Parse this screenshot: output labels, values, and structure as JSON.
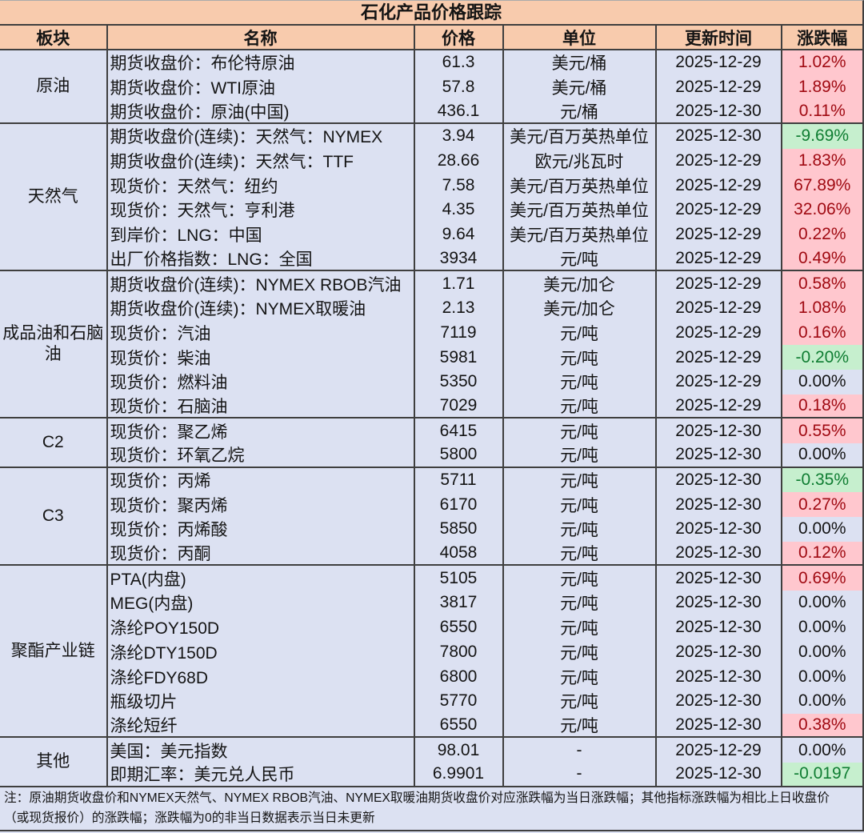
{
  "title": "石化产品价格跟踪",
  "columns": [
    "板块",
    "名称",
    "价格",
    "单位",
    "更新时间",
    "涨跌幅"
  ],
  "groups": [
    {
      "name": "原油",
      "rows": [
        {
          "name": "期货收盘价：布伦特原油",
          "price": "61.3",
          "unit": "美元/桶",
          "date": "2025-12-29",
          "change": "1.02%",
          "state": "up"
        },
        {
          "name": "期货收盘价：WTI原油",
          "price": "57.8",
          "unit": "美元/桶",
          "date": "2025-12-29",
          "change": "1.89%",
          "state": "up"
        },
        {
          "name": "期货收盘价：原油(中国)",
          "price": "436.1",
          "unit": "元/桶",
          "date": "2025-12-30",
          "change": "0.11%",
          "state": "up"
        }
      ]
    },
    {
      "name": "天然气",
      "rows": [
        {
          "name": "期货收盘价(连续)：天然气：NYMEX",
          "price": "3.94",
          "unit": "美元/百万英热单位",
          "date": "2025-12-30",
          "change": "-9.69%",
          "state": "down"
        },
        {
          "name": "期货收盘价(连续)：天然气：TTF",
          "price": "28.66",
          "unit": "欧元/兆瓦时",
          "date": "2025-12-29",
          "change": "1.83%",
          "state": "up"
        },
        {
          "name": "现货价：天然气：纽约",
          "price": "7.58",
          "unit": "美元/百万英热单位",
          "date": "2025-12-29",
          "change": "67.89%",
          "state": "up"
        },
        {
          "name": "现货价：天然气：亨利港",
          "price": "4.35",
          "unit": "美元/百万英热单位",
          "date": "2025-12-29",
          "change": "32.06%",
          "state": "up"
        },
        {
          "name": "到岸价：LNG：中国",
          "price": "9.64",
          "unit": "美元/百万英热单位",
          "date": "2025-12-29",
          "change": "0.22%",
          "state": "up"
        },
        {
          "name": "出厂价格指数：LNG：全国",
          "price": "3934",
          "unit": "元/吨",
          "date": "2025-12-29",
          "change": "0.49%",
          "state": "up"
        }
      ]
    },
    {
      "name": "成品油和石脑油",
      "rows": [
        {
          "name": "期货收盘价(连续)：NYMEX RBOB汽油",
          "price": "1.71",
          "unit": "美元/加仑",
          "date": "2025-12-29",
          "change": "0.58%",
          "state": "up"
        },
        {
          "name": "期货收盘价(连续)：NYMEX取暖油",
          "price": "2.13",
          "unit": "美元/加仑",
          "date": "2025-12-29",
          "change": "1.08%",
          "state": "up"
        },
        {
          "name": "现货价：汽油",
          "price": "7119",
          "unit": "元/吨",
          "date": "2025-12-29",
          "change": "0.16%",
          "state": "up"
        },
        {
          "name": "现货价：柴油",
          "price": "5981",
          "unit": "元/吨",
          "date": "2025-12-29",
          "change": "-0.20%",
          "state": "down"
        },
        {
          "name": "现货价：燃料油",
          "price": "5350",
          "unit": "元/吨",
          "date": "2025-12-29",
          "change": "0.00%",
          "state": "flat"
        },
        {
          "name": "现货价：石脑油",
          "price": "7029",
          "unit": "元/吨",
          "date": "2025-12-29",
          "change": "0.18%",
          "state": "up"
        }
      ]
    },
    {
      "name": "C2",
      "rows": [
        {
          "name": "现货价：聚乙烯",
          "price": "6415",
          "unit": "元/吨",
          "date": "2025-12-30",
          "change": "0.55%",
          "state": "up"
        },
        {
          "name": "现货价：环氧乙烷",
          "price": "5800",
          "unit": "元/吨",
          "date": "2025-12-30",
          "change": "0.00%",
          "state": "flat"
        }
      ]
    },
    {
      "name": "C3",
      "rows": [
        {
          "name": "现货价：丙烯",
          "price": "5711",
          "unit": "元/吨",
          "date": "2025-12-30",
          "change": "-0.35%",
          "state": "down"
        },
        {
          "name": "现货价：聚丙烯",
          "price": "6170",
          "unit": "元/吨",
          "date": "2025-12-30",
          "change": "0.27%",
          "state": "up"
        },
        {
          "name": "现货价：丙烯酸",
          "price": "5850",
          "unit": "元/吨",
          "date": "2025-12-30",
          "change": "0.00%",
          "state": "flat"
        },
        {
          "name": "现货价：丙酮",
          "price": "4058",
          "unit": "元/吨",
          "date": "2025-12-30",
          "change": "0.12%",
          "state": "up"
        }
      ]
    },
    {
      "name": "聚酯产业链",
      "rows": [
        {
          "name": "PTA(内盘)",
          "price": "5105",
          "unit": "元/吨",
          "date": "2025-12-30",
          "change": "0.69%",
          "state": "up"
        },
        {
          "name": "MEG(内盘)",
          "price": "3817",
          "unit": "元/吨",
          "date": "2025-12-30",
          "change": "0.00%",
          "state": "flat"
        },
        {
          "name": "涤纶POY150D",
          "price": "6550",
          "unit": "元/吨",
          "date": "2025-12-30",
          "change": "0.00%",
          "state": "flat"
        },
        {
          "name": "涤纶DTY150D",
          "price": "7800",
          "unit": "元/吨",
          "date": "2025-12-30",
          "change": "0.00%",
          "state": "flat"
        },
        {
          "name": "涤纶FDY68D",
          "price": "6800",
          "unit": "元/吨",
          "date": "2025-12-30",
          "change": "0.00%",
          "state": "flat"
        },
        {
          "name": "瓶级切片",
          "price": "5770",
          "unit": "元/吨",
          "date": "2025-12-30",
          "change": "0.00%",
          "state": "flat"
        },
        {
          "name": "涤纶短纤",
          "price": "6550",
          "unit": "元/吨",
          "date": "2025-12-30",
          "change": "0.38%",
          "state": "up"
        }
      ]
    },
    {
      "name": "其他",
      "rows": [
        {
          "name": "美国：美元指数",
          "price": "98.01",
          "unit": "-",
          "date": "2025-12-29",
          "change": "0.00%",
          "state": "flat"
        },
        {
          "name": "即期汇率：美元兑人民币",
          "price": "6.9901",
          "unit": "-",
          "date": "2025-12-30",
          "change": "-0.0197",
          "state": "down"
        }
      ]
    }
  ],
  "note_lines": [
    "注：原油期货收盘价和NYMEX天然气、NYMEX RBOB汽油、NYMEX取暖油期货收盘价对应涨跌幅为当日涨跌幅；其他指标涨跌幅为相比上日收盘价",
    "（或现货报价）的涨跌幅；涨跌幅为0的非当日数据表示当日未更新"
  ],
  "colors": {
    "header_bg": "#F8CBAD",
    "row_bg": "#DCE1F2",
    "grid_line": "#3F3F3F",
    "up_bg": "#FFC7CE",
    "up_text": "#A00A12",
    "down_bg": "#C6EFCE",
    "down_text": "#0F7D32"
  }
}
